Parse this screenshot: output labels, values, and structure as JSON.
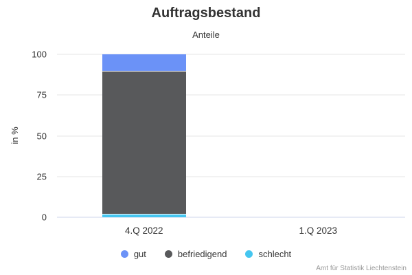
{
  "chart_data": {
    "type": "bar",
    "stacked": true,
    "title": "Auftragsbestand",
    "subtitle": "Anteile",
    "ylabel": "in %",
    "xlabel": "",
    "categories": [
      "4.Q 2022",
      "1.Q 2023"
    ],
    "series": [
      {
        "name": "gut",
        "color": "#6b92f7",
        "values": [
          10,
          0
        ]
      },
      {
        "name": "befriedigend",
        "color": "#58595b",
        "values": [
          88,
          0
        ]
      },
      {
        "name": "schlecht",
        "color": "#45c6f0",
        "values": [
          2,
          0
        ]
      }
    ],
    "stack_order_bottom_to_top": [
      "schlecht",
      "befriedigend",
      "gut"
    ],
    "ylim": [
      0,
      100
    ],
    "yticks": [
      0,
      25,
      50,
      75,
      100
    ],
    "grid": true,
    "legend_position": "bottom"
  },
  "footer": {
    "source": "Amt für Statistik Liechtenstein"
  },
  "colors": {
    "gridline": "#e6e6e6",
    "axis_line": "#ccd6eb",
    "text": "#333333",
    "muted_text": "#999999",
    "background": "#ffffff",
    "separator": "#ffffff"
  }
}
